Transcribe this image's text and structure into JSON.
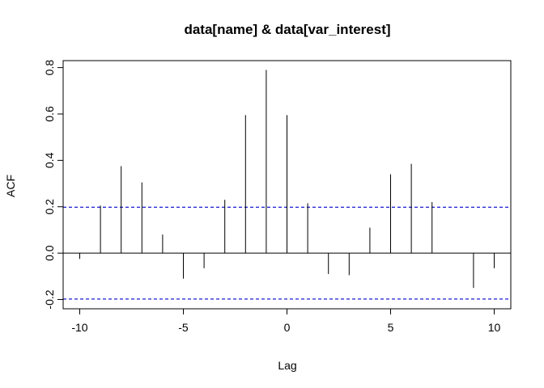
{
  "chart_data": {
    "type": "bar",
    "title": "data[name] & data[var_interest]",
    "xlabel": "Lag",
    "ylabel": "ACF",
    "xlim": [
      -10.8,
      10.8
    ],
    "ylim": [
      -0.24,
      0.83
    ],
    "x_ticks": [
      -10,
      -5,
      0,
      5,
      10
    ],
    "y_ticks": [
      -0.2,
      0.0,
      0.2,
      0.4,
      0.6,
      0.8
    ],
    "x_tick_labels": [
      "-10",
      "-5",
      "0",
      "5",
      "10"
    ],
    "y_tick_labels": [
      "-0.2",
      "0.0",
      "0.2",
      "0.4",
      "0.6",
      "0.8"
    ],
    "confidence_bounds": [
      0.198,
      -0.198
    ],
    "confidence_color": "#0000cc",
    "lags": [
      -10,
      -9,
      -8,
      -7,
      -6,
      -5,
      -4,
      -3,
      -2,
      -1,
      0,
      1,
      2,
      3,
      4,
      5,
      6,
      7,
      8,
      9,
      10
    ],
    "values": [
      -0.025,
      0.205,
      0.375,
      0.305,
      0.08,
      -0.11,
      -0.065,
      0.23,
      0.595,
      0.79,
      0.595,
      0.215,
      -0.09,
      -0.095,
      0.11,
      0.34,
      0.385,
      0.22,
      0.0,
      -0.15,
      -0.065
    ],
    "grid": false
  }
}
